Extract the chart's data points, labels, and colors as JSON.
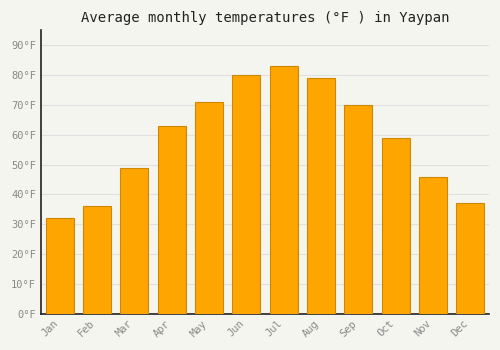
{
  "title": "Average monthly temperatures (°F ) in Yaypan",
  "months": [
    "Jan",
    "Feb",
    "Mar",
    "Apr",
    "May",
    "Jun",
    "Jul",
    "Aug",
    "Sep",
    "Oct",
    "Nov",
    "Dec"
  ],
  "values": [
    32,
    36,
    49,
    63,
    71,
    80,
    83,
    79,
    70,
    59,
    46,
    37
  ],
  "bar_color": "#FFA500",
  "bar_edge_color": "#CC8800",
  "background_color": "#F5F5F0",
  "grid_color": "#E0E0E0",
  "tick_color": "#888888",
  "title_color": "#222222",
  "spine_color": "#222222",
  "ylim": [
    0,
    95
  ],
  "yticks": [
    0,
    10,
    20,
    30,
    40,
    50,
    60,
    70,
    80,
    90
  ],
  "ytick_labels": [
    "0°F",
    "10°F",
    "20°F",
    "30°F",
    "40°F",
    "50°F",
    "60°F",
    "70°F",
    "80°F",
    "90°F"
  ],
  "title_fontsize": 10,
  "tick_fontsize": 7.5,
  "figsize": [
    5.0,
    3.5
  ],
  "dpi": 100
}
